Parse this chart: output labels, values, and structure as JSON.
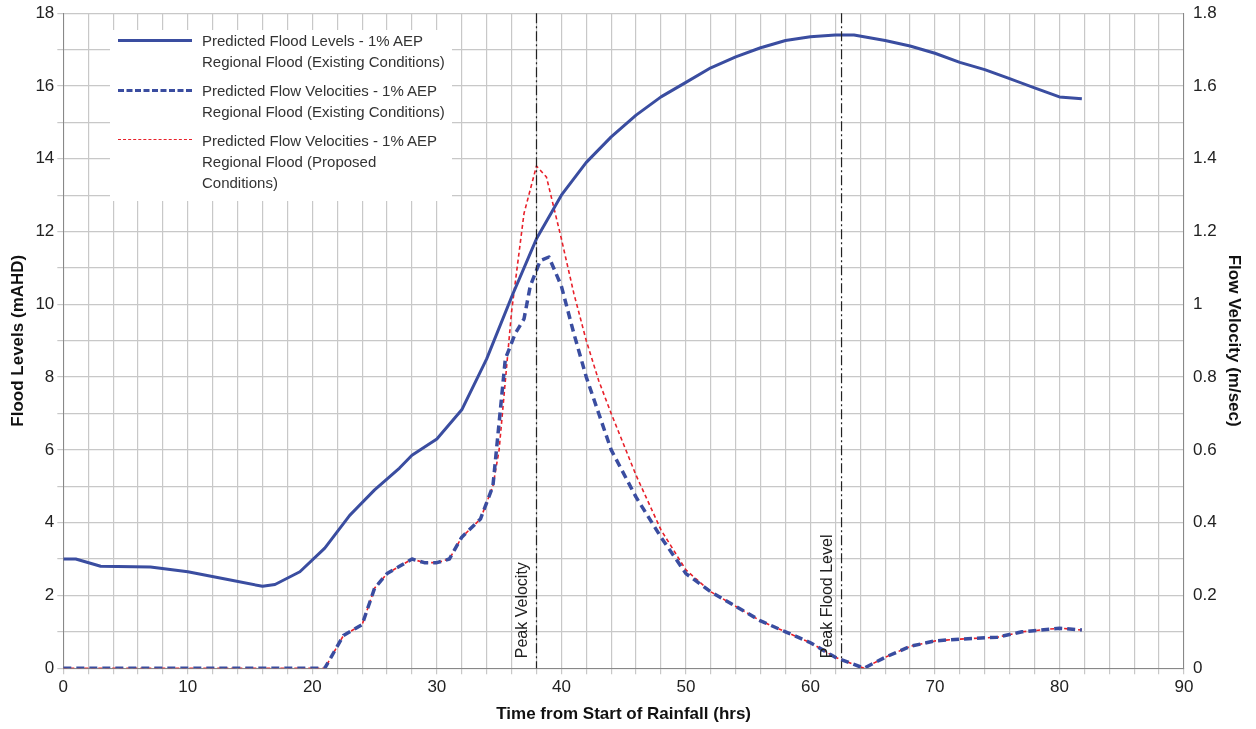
{
  "chart_data": {
    "type": "line",
    "xlabel": "Time from Start of Rainfall (hrs)",
    "ylabel": "Flood Levels (mAHD)",
    "y2label": "Flow Velocity (m/sec)",
    "xlim": [
      0,
      90
    ],
    "xticks": [
      0,
      {
        "value": 2,
        "label": null
      },
      {
        "value": 4,
        "label": null
      },
      {
        "value": 6,
        "label": null
      },
      {
        "value": 8,
        "label": null
      },
      10,
      {
        "value": 12,
        "label": null
      },
      {
        "value": 14,
        "label": null
      },
      {
        "value": 16,
        "label": null
      },
      {
        "value": 18,
        "label": null
      },
      20,
      {
        "value": 22,
        "label": null
      },
      {
        "value": 24,
        "label": null
      },
      {
        "value": 26,
        "label": null
      },
      {
        "value": 28,
        "label": null
      },
      30,
      {
        "value": 32,
        "label": null
      },
      {
        "value": 34,
        "label": null
      },
      {
        "value": 36,
        "label": null
      },
      {
        "value": 38,
        "label": null
      },
      40,
      {
        "value": 42,
        "label": null
      },
      {
        "value": 44,
        "label": null
      },
      {
        "value": 46,
        "label": null
      },
      {
        "value": 48,
        "label": null
      },
      50,
      {
        "value": 52,
        "label": null
      },
      {
        "value": 54,
        "label": null
      },
      {
        "value": 56,
        "label": null
      },
      {
        "value": 58,
        "label": null
      },
      60,
      {
        "value": 62,
        "label": null
      },
      {
        "value": 64,
        "label": null
      },
      {
        "value": 66,
        "label": null
      },
      {
        "value": 68,
        "label": null
      },
      70,
      {
        "value": 72,
        "label": null
      },
      {
        "value": 74,
        "label": null
      },
      {
        "value": 76,
        "label": null
      },
      {
        "value": 78,
        "label": null
      },
      80,
      {
        "value": 82,
        "label": null
      },
      {
        "value": 84,
        "label": null
      },
      {
        "value": 86,
        "label": null
      },
      {
        "value": 88,
        "label": null
      },
      90
    ],
    "ylim": [
      0,
      18
    ],
    "yticks": [
      0,
      {
        "value": 1,
        "label": null
      },
      2,
      {
        "value": 3,
        "label": null
      },
      4,
      {
        "value": 5,
        "label": null
      },
      6,
      {
        "value": 7,
        "label": null
      },
      8,
      {
        "value": 9,
        "label": null
      },
      10,
      {
        "value": 11,
        "label": null
      },
      12,
      {
        "value": 13,
        "label": null
      },
      14,
      {
        "value": 15,
        "label": null
      },
      16,
      {
        "value": 17,
        "label": null
      },
      18
    ],
    "y2lim": [
      0,
      1.8
    ],
    "y2ticks": [
      0,
      0.2,
      0.4,
      0.6,
      0.8,
      1,
      1.2,
      1.4,
      1.6,
      1.8
    ],
    "grid": true,
    "legend": "top left",
    "marker": "none",
    "ref_lines": [
      {
        "axis": "x",
        "value": 38,
        "label": "Peak Velocity",
        "color": "#222222",
        "line_style": "dashdot"
      },
      {
        "axis": "x",
        "value": 62.5,
        "label": "Peak Flood Level",
        "color": "#222222",
        "line_style": "dashdot"
      }
    ],
    "series": [
      {
        "name": "Predicted Flood Levels - 1% AEP Regional Flood (Existing Conditions)",
        "color": "#3a4da0",
        "line_style": "solid",
        "x": [
          0,
          1,
          3,
          7,
          10,
          13,
          16,
          17,
          19,
          21,
          23,
          25,
          27,
          28,
          30,
          32,
          34,
          36,
          38,
          40,
          42,
          44,
          46,
          48,
          50,
          52,
          54,
          56,
          58,
          60,
          62,
          63.5,
          66,
          68,
          70,
          72,
          74,
          76,
          78,
          80,
          81.8
        ],
        "values": [
          3.0,
          3.0,
          2.8,
          2.78,
          2.65,
          2.45,
          2.25,
          2.3,
          2.65,
          3.3,
          4.2,
          4.9,
          5.5,
          5.85,
          6.3,
          7.1,
          8.5,
          10.2,
          11.8,
          13.0,
          13.9,
          14.6,
          15.2,
          15.7,
          16.1,
          16.5,
          16.8,
          17.05,
          17.25,
          17.35,
          17.4,
          17.4,
          17.25,
          17.1,
          16.9,
          16.65,
          16.45,
          16.2,
          15.95,
          15.7,
          15.65
        ]
      },
      {
        "name": "Predicted Flow Velocities - 1% AEP Regional Flood (Existing Conditions)",
        "color": "#3a4da0",
        "line_style": "dashed",
        "axis": "y2",
        "x": [
          0,
          21,
          21.5,
          22.5,
          24,
          25,
          26,
          27,
          28,
          29,
          30,
          31,
          32,
          33.5,
          34.5,
          35.5,
          36.3,
          37,
          37.5,
          38.3,
          39,
          40,
          41,
          42,
          43,
          44,
          46,
          48,
          50,
          52,
          54,
          56,
          58,
          60,
          62,
          64.3,
          66,
          68,
          70,
          72,
          75,
          77,
          80,
          81.8
        ],
        "values": [
          0,
          0,
          0.03,
          0.09,
          0.12,
          0.22,
          0.26,
          0.28,
          0.3,
          0.29,
          0.29,
          0.3,
          0.36,
          0.41,
          0.5,
          0.85,
          0.92,
          0.96,
          1.05,
          1.12,
          1.13,
          1.05,
          0.92,
          0.8,
          0.7,
          0.6,
          0.47,
          0.36,
          0.26,
          0.21,
          0.17,
          0.13,
          0.1,
          0.07,
          0.03,
          0,
          0.03,
          0.06,
          0.075,
          0.08,
          0.085,
          0.1,
          0.11,
          0.105
        ]
      },
      {
        "name": "Predicted Flow Velocities - 1% AEP Regional Flood (Proposed Conditions)",
        "color": "#e8202a",
        "line_style": "dotted",
        "axis": "y2",
        "x": [
          0,
          21,
          21.5,
          22.5,
          24,
          25,
          26,
          27,
          28,
          29,
          30,
          31,
          32,
          33.5,
          34.5,
          35,
          36,
          37,
          38,
          38.8,
          40,
          41,
          42,
          43,
          44,
          46,
          48,
          50,
          52,
          54,
          56,
          58,
          60,
          62,
          64.3,
          66,
          68,
          70,
          72,
          75,
          77,
          80,
          81.8
        ],
        "values": [
          0,
          0,
          0.03,
          0.09,
          0.12,
          0.22,
          0.26,
          0.28,
          0.3,
          0.29,
          0.29,
          0.3,
          0.36,
          0.41,
          0.5,
          0.6,
          0.98,
          1.25,
          1.38,
          1.35,
          1.18,
          1.03,
          0.9,
          0.79,
          0.7,
          0.53,
          0.38,
          0.27,
          0.21,
          0.17,
          0.13,
          0.1,
          0.07,
          0.03,
          0,
          0.03,
          0.06,
          0.075,
          0.08,
          0.085,
          0.1,
          0.11,
          0.105
        ]
      }
    ]
  }
}
